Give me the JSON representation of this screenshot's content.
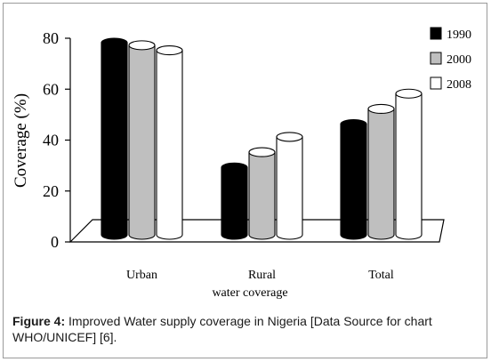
{
  "chart_data": {
    "type": "bar",
    "style": "3d-cylinder",
    "categories": [
      "Urban",
      "Rural",
      "Total"
    ],
    "series": [
      {
        "name": "1990",
        "values": [
          80,
          31,
          48
        ],
        "color": "#000000"
      },
      {
        "name": "2000",
        "values": [
          79,
          37,
          54
        ],
        "color": "#bfbfbf"
      },
      {
        "name": "2008",
        "values": [
          77,
          43,
          60
        ],
        "color": "#ffffff"
      }
    ],
    "xlabel": "water coverage",
    "ylabel": "Coverage (%)",
    "ylim": [
      0,
      80
    ],
    "yticks": [
      "0",
      "20",
      "40",
      "60",
      "80"
    ],
    "legend_position": "top-right",
    "grid": false
  },
  "caption": {
    "label": "Figure 4:",
    "text": " Improved Water supply coverage in Nigeria [Data Source for chart WHO/UNICEF] [6]."
  }
}
